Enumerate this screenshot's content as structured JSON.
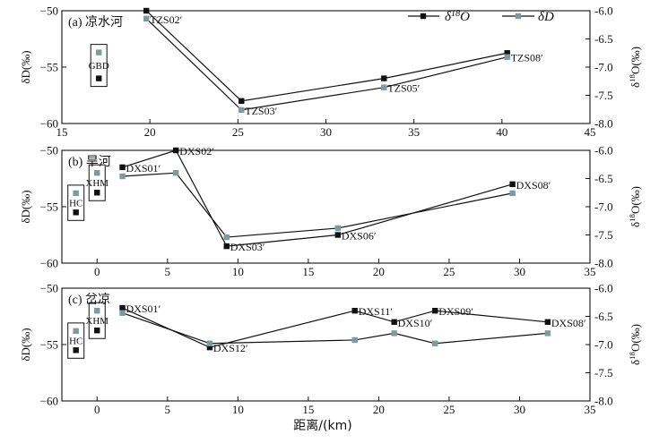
{
  "colors": {
    "d18o_marker": "#111111",
    "dD_marker": "#7d9aa2",
    "line": "#111111"
  },
  "xlabel": "距离/(km)",
  "chart_data": [
    {
      "type": "line",
      "panel_label": "(a) 凉水河",
      "xlim": [
        15,
        45
      ],
      "xticks": [
        "15",
        "20",
        "25",
        "30",
        "35",
        "40",
        "45"
      ],
      "left_ylabel": "δD(‰)",
      "left_ylim": [
        -60,
        -50
      ],
      "left_yticks": [
        "−50",
        "−55",
        "−60"
      ],
      "right_ylabel": "δ18O(‰)",
      "right_ylim": [
        -8.0,
        -6.0
      ],
      "right_yticks": [
        "-6.0",
        "-6.5",
        "-7.0",
        "-7.5",
        "-8.0"
      ],
      "legend": {
        "position": "top-right",
        "entries": [
          "δ18O",
          "δD"
        ]
      },
      "series": [
        {
          "name": "δ18O",
          "axis": "right",
          "x": [
            19.8,
            25.2,
            33.3,
            40.3
          ],
          "values": [
            -6.0,
            -7.6,
            -7.2,
            -6.75
          ]
        },
        {
          "name": "δD",
          "axis": "left",
          "x": [
            19.8,
            25.2,
            33.3,
            40.3
          ],
          "values": [
            -50.7,
            -58.8,
            -56.8,
            -54.1
          ]
        }
      ],
      "point_labels": [
        {
          "text": "TZS02′",
          "x": 19.8,
          "value": -50.7,
          "axis": "left"
        },
        {
          "text": "TZS03′",
          "x": 25.2,
          "value": -58.8,
          "axis": "left"
        },
        {
          "text": "TZS05′",
          "x": 33.3,
          "value": -56.8,
          "axis": "left"
        },
        {
          "text": "TZS08′",
          "x": 40.3,
          "value": -54.1,
          "axis": "left"
        }
      ],
      "groups": [
        {
          "label": "GBD",
          "x": 17.1,
          "dD": -53.7,
          "d18O": -7.2
        }
      ]
    },
    {
      "type": "line",
      "panel_label": "(b) 旱河",
      "xlim": [
        -2.5,
        35
      ],
      "xticks": [
        "0",
        "5",
        "10",
        "15",
        "20",
        "25",
        "30",
        "35"
      ],
      "left_ylabel": "δD(‰)",
      "left_ylim": [
        -60,
        -50
      ],
      "left_yticks": [
        "−50",
        "−55",
        "−60"
      ],
      "right_ylabel": "δ18O(‰)",
      "right_ylim": [
        -8.0,
        -6.0
      ],
      "right_yticks": [
        "-6.0",
        "-6.5",
        "-7.0",
        "-7.5",
        "-8.0"
      ],
      "series": [
        {
          "name": "δ18O",
          "axis": "right",
          "x": [
            1.8,
            5.6,
            9.2,
            17.1,
            29.5
          ],
          "values": [
            -6.3,
            -6.0,
            -7.7,
            -7.5,
            -6.6
          ]
        },
        {
          "name": "δD",
          "axis": "left",
          "x": [
            1.8,
            5.6,
            9.2,
            17.1,
            29.5
          ],
          "values": [
            -52.3,
            -52.0,
            -57.7,
            -56.9,
            -53.8
          ]
        }
      ],
      "point_labels": [
        {
          "text": "DXS01′",
          "x": 1.8,
          "value": -6.3,
          "axis": "right"
        },
        {
          "text": "DXS02′",
          "x": 5.6,
          "value": -6.0,
          "axis": "right"
        },
        {
          "text": "DXS03′",
          "x": 9.2,
          "value": -7.7,
          "axis": "right"
        },
        {
          "text": "DXS06′",
          "x": 17.1,
          "value": -7.5,
          "axis": "right"
        },
        {
          "text": "DXS08′",
          "x": 29.5,
          "value": -6.6,
          "axis": "right"
        }
      ],
      "groups": [
        {
          "label": "HC",
          "x": -1.5,
          "dD": -53.8,
          "d18O": -7.1
        },
        {
          "label": "XHM",
          "x": 0.0,
          "dD": -52.0,
          "d18O": -6.75
        }
      ]
    },
    {
      "type": "line",
      "panel_label": "(c) 岔凉",
      "xlim": [
        -2.5,
        35
      ],
      "xticks": [
        "0",
        "5",
        "10",
        "15",
        "20",
        "25",
        "30",
        "35"
      ],
      "left_ylabel": "δD(‰)",
      "left_ylim": [
        -60,
        -50
      ],
      "left_yticks": [
        "−50",
        "−55",
        "−60"
      ],
      "right_ylabel": "δ18O(‰)",
      "right_ylim": [
        -8.0,
        -6.0
      ],
      "right_yticks": [
        "-6.0",
        "-6.5",
        "-7.0",
        "-7.5",
        "-8.0"
      ],
      "series": [
        {
          "name": "δ18O",
          "axis": "right",
          "x": [
            1.8,
            8.0,
            18.3,
            21.1,
            24.0,
            32.0
          ],
          "values": [
            -6.35,
            -7.05,
            -6.4,
            -6.6,
            -6.4,
            -6.6
          ]
        },
        {
          "name": "δD",
          "axis": "left",
          "x": [
            1.8,
            8.0,
            18.3,
            21.1,
            24.0,
            32.0
          ],
          "values": [
            -52.2,
            -54.9,
            -54.6,
            -54.0,
            -54.9,
            -54.0
          ]
        }
      ],
      "point_labels": [
        {
          "text": "DXS01′",
          "x": 1.8,
          "value": -6.35,
          "axis": "right"
        },
        {
          "text": "DXS12′",
          "x": 8.0,
          "value": -7.05,
          "axis": "right"
        },
        {
          "text": "DXS11′",
          "x": 18.3,
          "value": -6.4,
          "axis": "right"
        },
        {
          "text": "DXS10′",
          "x": 21.1,
          "value": -6.6,
          "axis": "right"
        },
        {
          "text": "DXS09′",
          "x": 24.0,
          "value": -6.4,
          "axis": "right"
        },
        {
          "text": "DXS08′",
          "x": 32.0,
          "value": -6.6,
          "axis": "right"
        }
      ],
      "groups": [
        {
          "label": "HC",
          "x": -1.5,
          "dD": -53.8,
          "d18O": -7.1
        },
        {
          "label": "XHM",
          "x": 0.0,
          "dD": -52.0,
          "d18O": -6.75
        }
      ]
    }
  ]
}
